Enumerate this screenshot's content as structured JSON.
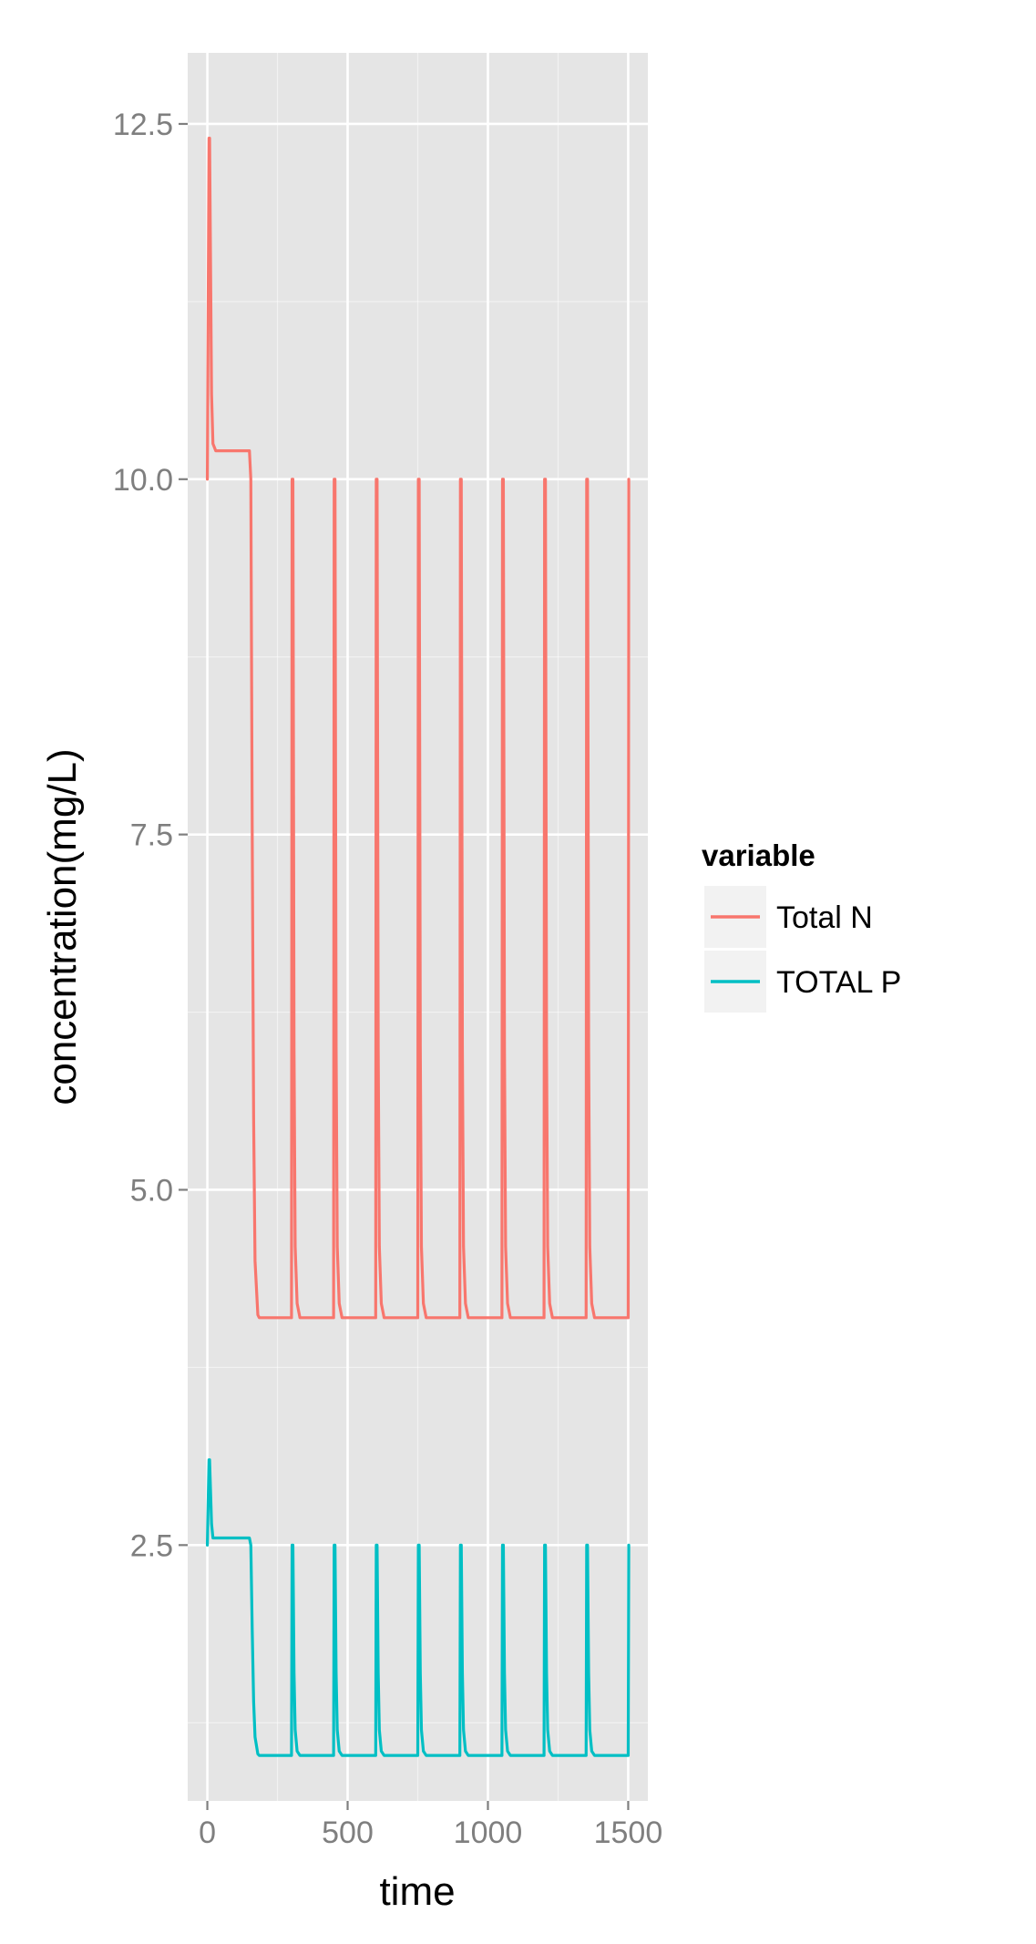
{
  "chart_data": {
    "type": "line",
    "title": "",
    "xlabel": "time",
    "ylabel": "concentration(mg/L)",
    "xlim": [
      -70,
      1570
    ],
    "ylim": [
      0.7,
      13.0
    ],
    "x_ticks": [
      0,
      500,
      1000,
      1500
    ],
    "x_tick_labels": [
      "0",
      "500",
      "1000",
      "1500"
    ],
    "y_ticks": [
      2.5,
      5.0,
      7.5,
      10.0,
      12.5
    ],
    "y_tick_labels": [
      "2.5",
      "5.0",
      "7.5",
      "10.0",
      "12.5"
    ],
    "grid": true,
    "legend": {
      "title": "variable",
      "position": "right"
    },
    "colors": {
      "panel": "#e5e5e5",
      "grid": "#ffffff",
      "Total N": "#f8766d",
      "TOTAL P": "#00bfc4"
    },
    "series": [
      {
        "name": "Total N",
        "color": "#f8766d",
        "x": [
          0,
          6,
          8,
          15,
          20,
          30,
          150,
          155,
          160,
          165,
          170,
          180,
          185,
          300,
          302,
          305,
          309,
          313,
          320,
          330,
          450,
          452,
          455,
          459,
          463,
          470,
          480,
          600,
          602,
          605,
          609,
          613,
          620,
          630,
          750,
          752,
          755,
          759,
          763,
          770,
          780,
          900,
          902,
          905,
          909,
          913,
          920,
          930,
          1050,
          1052,
          1055,
          1059,
          1063,
          1070,
          1080,
          1200,
          1202,
          1205,
          1209,
          1213,
          1220,
          1230,
          1350,
          1352,
          1355,
          1359,
          1363,
          1370,
          1380,
          1500,
          1502
        ],
        "values": [
          10.0,
          12.4,
          12.4,
          10.6,
          10.25,
          10.2,
          10.2,
          10.0,
          7.5,
          5.5,
          4.5,
          4.12,
          4.1,
          4.1,
          10.0,
          10.0,
          6.0,
          4.6,
          4.2,
          4.1,
          4.1,
          10.0,
          10.0,
          6.0,
          4.6,
          4.2,
          4.1,
          4.1,
          10.0,
          10.0,
          6.0,
          4.6,
          4.2,
          4.1,
          4.1,
          10.0,
          10.0,
          6.0,
          4.6,
          4.2,
          4.1,
          4.1,
          10.0,
          10.0,
          6.0,
          4.6,
          4.2,
          4.1,
          4.1,
          10.0,
          10.0,
          6.0,
          4.6,
          4.2,
          4.1,
          4.1,
          10.0,
          10.0,
          6.0,
          4.6,
          4.2,
          4.1,
          4.1,
          10.0,
          10.0,
          6.0,
          4.6,
          4.2,
          4.1,
          4.1,
          10.0
        ]
      },
      {
        "name": "TOTAL P",
        "color": "#00bfc4",
        "x": [
          0,
          6,
          8,
          15,
          20,
          30,
          150,
          155,
          160,
          165,
          170,
          180,
          185,
          300,
          302,
          305,
          309,
          313,
          320,
          330,
          450,
          452,
          455,
          459,
          463,
          470,
          480,
          600,
          602,
          605,
          609,
          613,
          620,
          630,
          750,
          752,
          755,
          759,
          763,
          770,
          780,
          900,
          902,
          905,
          909,
          913,
          920,
          930,
          1050,
          1052,
          1055,
          1059,
          1063,
          1070,
          1080,
          1200,
          1202,
          1205,
          1209,
          1213,
          1220,
          1230,
          1350,
          1352,
          1355,
          1359,
          1363,
          1370,
          1380,
          1500,
          1502
        ],
        "values": [
          2.5,
          3.1,
          3.1,
          2.65,
          2.55,
          2.55,
          2.55,
          2.5,
          1.9,
          1.4,
          1.15,
          1.03,
          1.02,
          1.02,
          2.5,
          2.5,
          1.6,
          1.2,
          1.05,
          1.02,
          1.02,
          2.5,
          2.5,
          1.6,
          1.2,
          1.05,
          1.02,
          1.02,
          2.5,
          2.5,
          1.6,
          1.2,
          1.05,
          1.02,
          1.02,
          2.5,
          2.5,
          1.6,
          1.2,
          1.05,
          1.02,
          1.02,
          2.5,
          2.5,
          1.6,
          1.2,
          1.05,
          1.02,
          1.02,
          2.5,
          2.5,
          1.6,
          1.2,
          1.05,
          1.02,
          1.02,
          2.5,
          2.5,
          1.6,
          1.2,
          1.05,
          1.02,
          1.02,
          2.5,
          2.5,
          1.6,
          1.2,
          1.05,
          1.02,
          1.02,
          2.5
        ]
      }
    ]
  }
}
